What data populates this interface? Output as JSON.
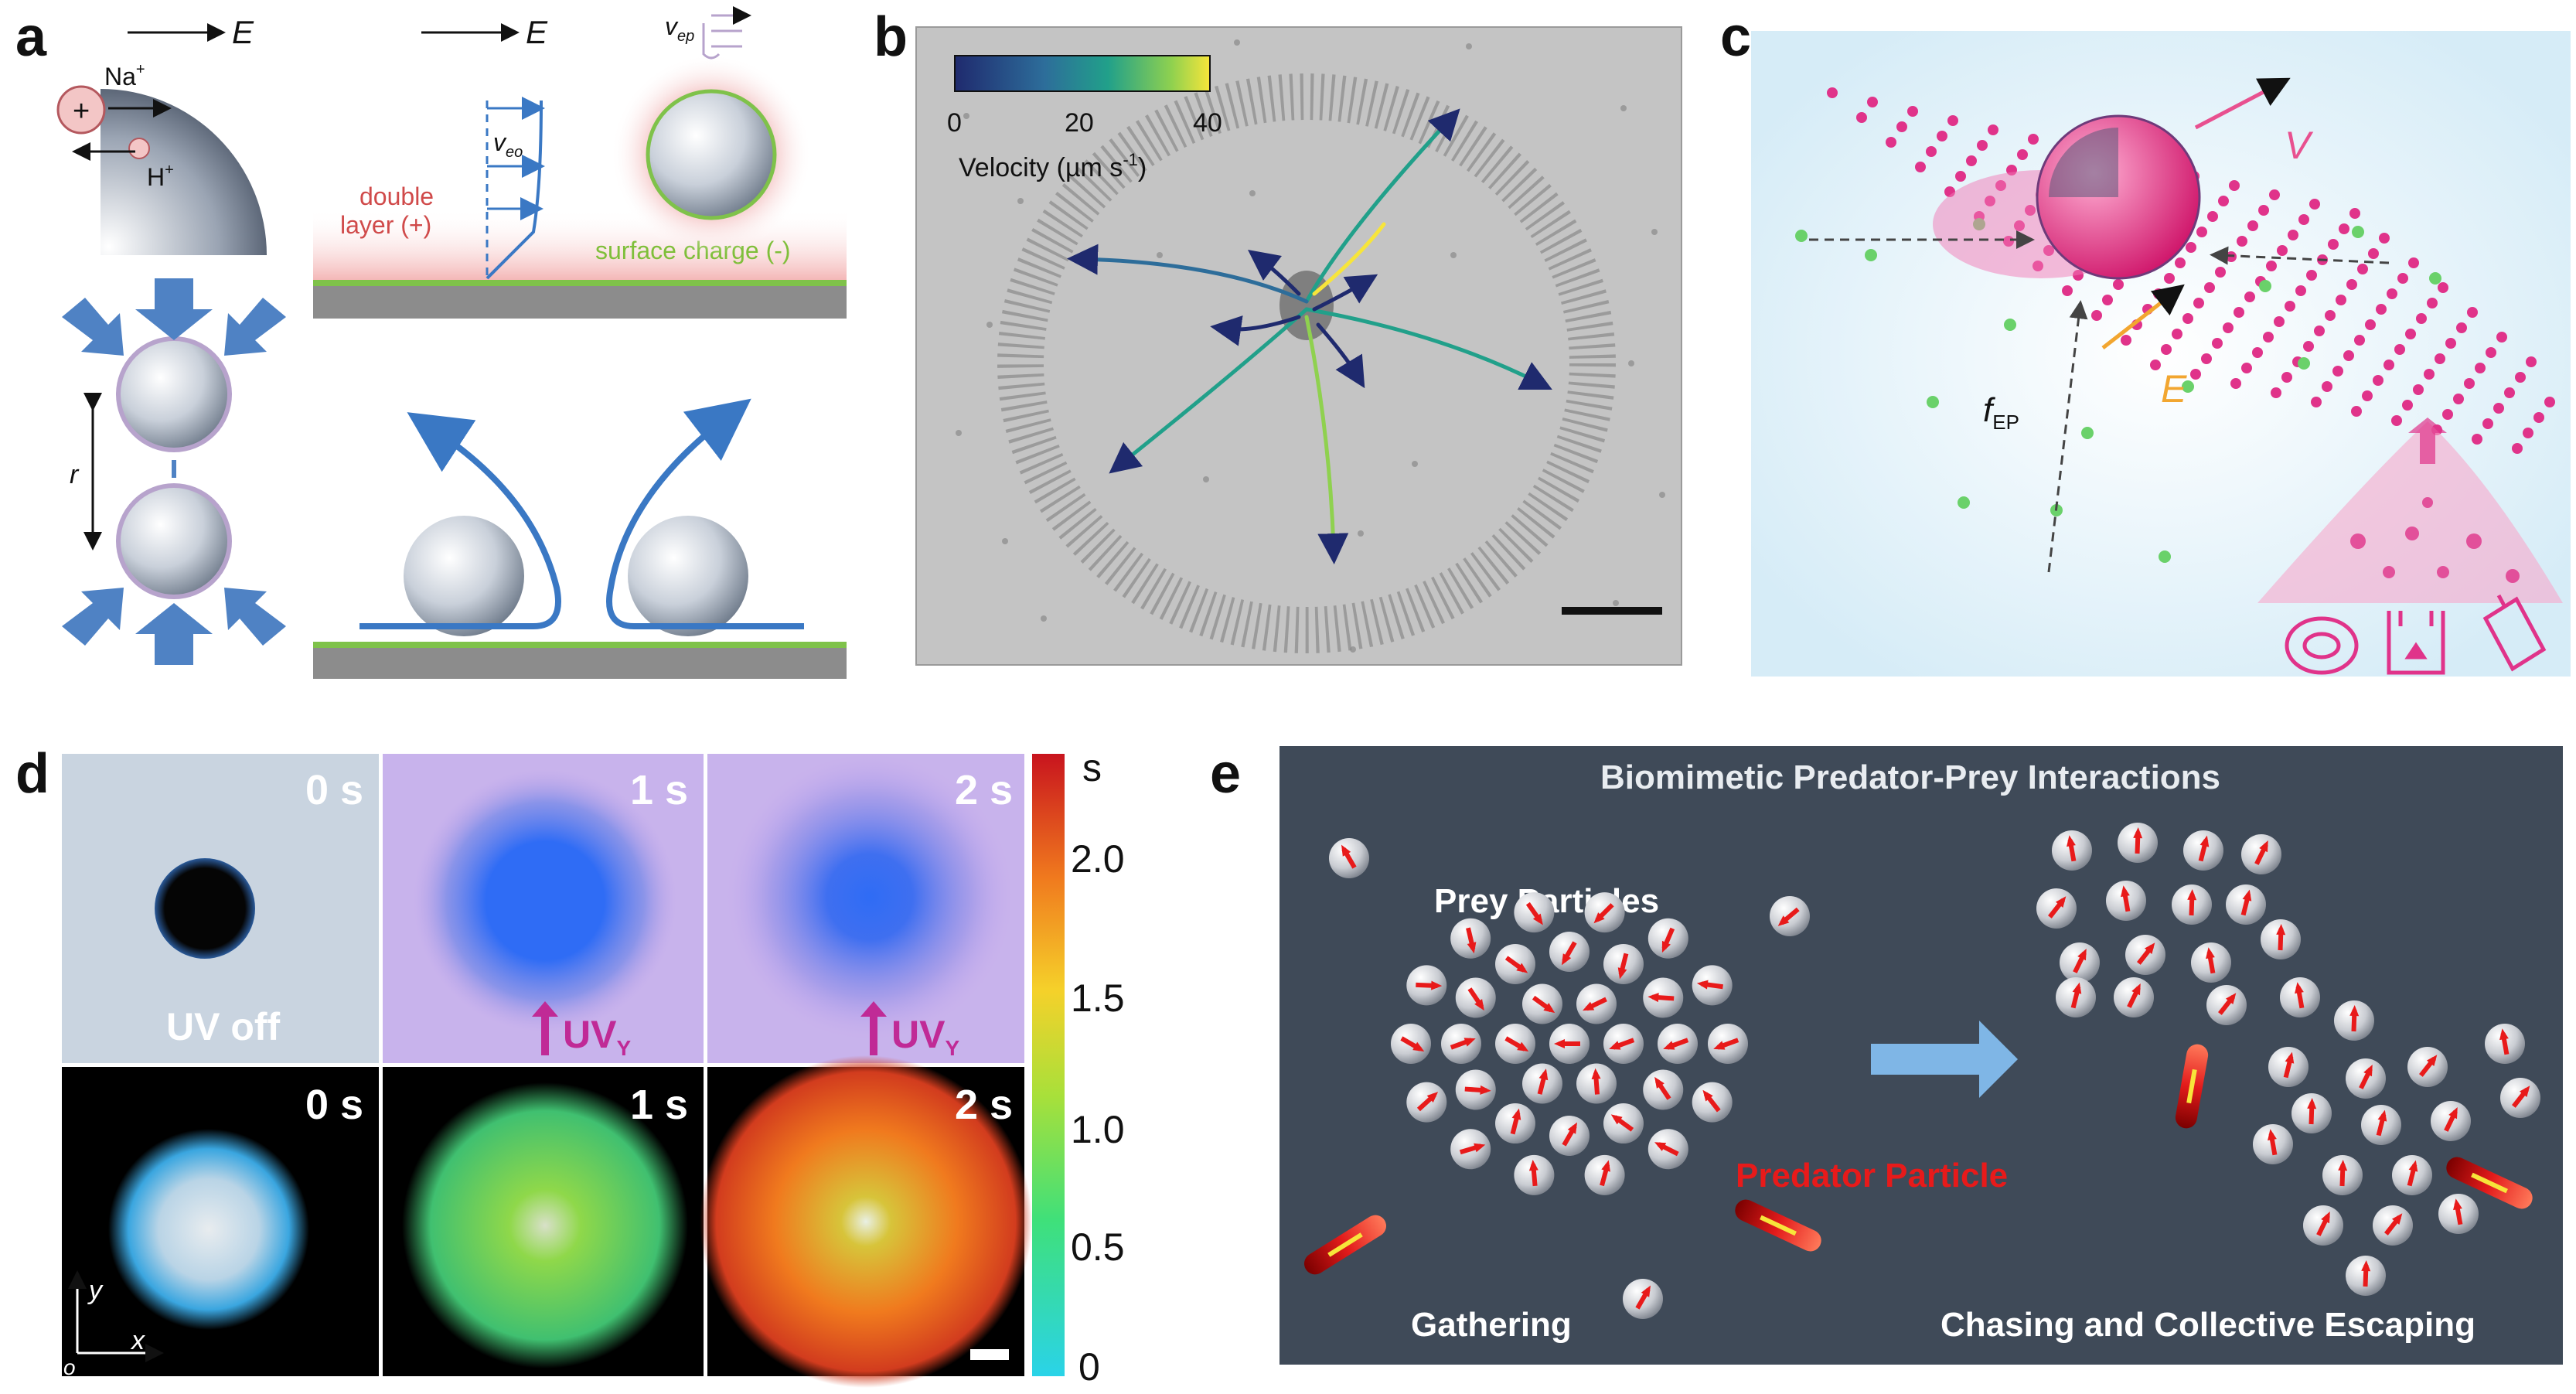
{
  "panels": {
    "a": {
      "letter": "a",
      "e_field_label": "E",
      "na_label": "Na",
      "na_sup": "+",
      "h_label": "H",
      "h_sup": "+",
      "plus_glyph": "+",
      "v_eo": "v",
      "v_eo_sub": "eo",
      "v_ep": "v",
      "v_ep_sub": "ep",
      "double_layer": "double",
      "double_layer_2": "layer (+)",
      "surface_charge": "surface charge (-)",
      "distance_label": "r"
    },
    "b": {
      "letter": "b",
      "colorbar_title": "Velocity (µm s",
      "colorbar_title_sup": "-1",
      "colorbar_title_end": ")",
      "ticks": [
        "0",
        "20",
        "40"
      ],
      "colors": {
        "low": "#1f2a6e",
        "mid": "#21a08a",
        "high": "#f7e53a"
      }
    },
    "c": {
      "letter": "c",
      "v_label": "V",
      "e_label": "E",
      "f_label": "f",
      "f_sub": "EP",
      "colors": {
        "particle": "#e0338a",
        "ion": "#6ad16a",
        "v_arrow": "#e8508f",
        "e_arrow": "#f2a630"
      }
    },
    "d": {
      "letter": "d",
      "top_times": [
        "0 s",
        "1 s",
        "2 s"
      ],
      "bottom_times": [
        "0 s",
        "1 s",
        "2 s"
      ],
      "uv_off": "UV off",
      "uv_on": "UV",
      "uv_sub": "Y",
      "colorbar_unit": "s",
      "colorbar_ticks": [
        "2.0",
        "1.5",
        "1.0",
        "0.5",
        "0"
      ],
      "axis_y": "y",
      "axis_x": "x",
      "axis_o": "o"
    },
    "e": {
      "letter": "e",
      "title": "Biomimetic Predator-Prey Interactions",
      "prey_label": "Prey Particles",
      "predator_label": "Predator Particle",
      "left_caption": "Gathering",
      "right_caption": "Chasing and Collective Escaping",
      "colors": {
        "background": "#3f4a58",
        "arrow": "#e81a1a",
        "process_arrow": "#7fb6e6"
      }
    }
  }
}
